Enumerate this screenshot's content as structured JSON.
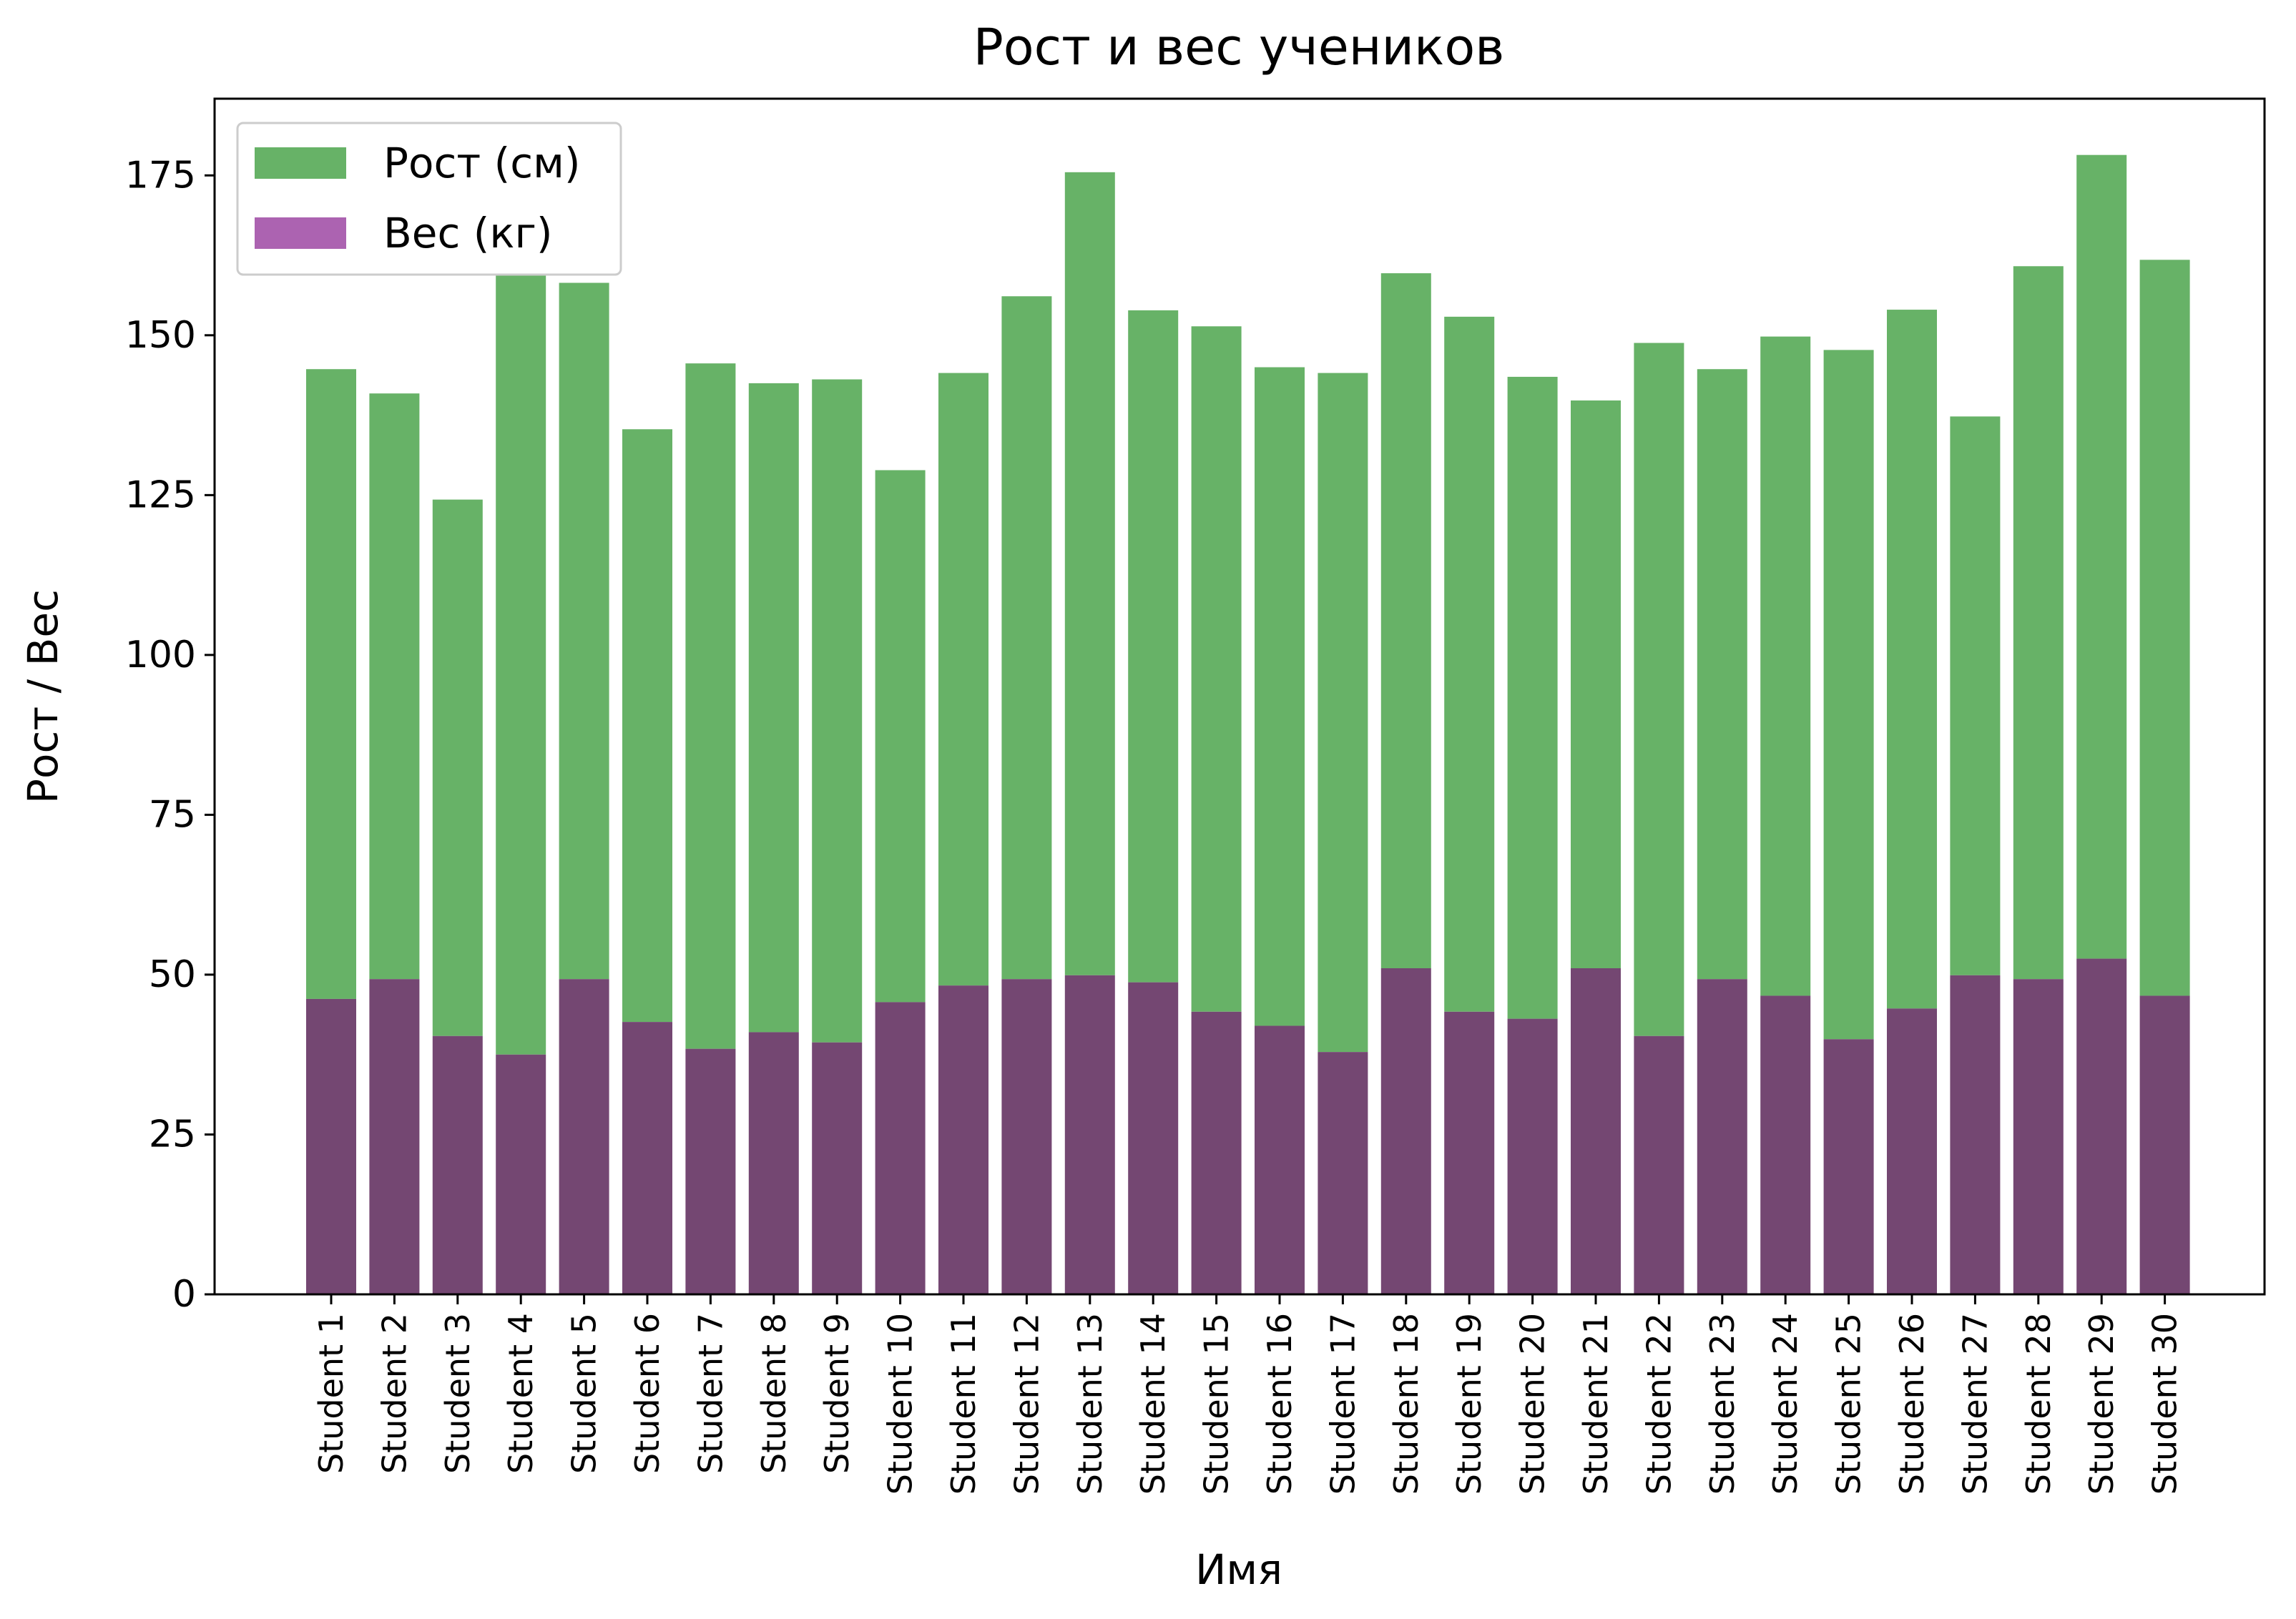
{
  "chart_data": {
    "type": "bar",
    "title": "Рост и вес учеников",
    "xlabel": "Имя",
    "ylabel": "Рост / Вес",
    "ylim": [
      0,
      187
    ],
    "yticks": [
      0,
      25,
      50,
      75,
      100,
      125,
      150,
      175
    ],
    "grid": false,
    "legend_position": "top-left",
    "categories": [
      "Student 1",
      "Student 2",
      "Student 3",
      "Student 4",
      "Student 5",
      "Student 6",
      "Student 7",
      "Student 8",
      "Student 9",
      "Student 10",
      "Student 11",
      "Student 12",
      "Student 13",
      "Student 14",
      "Student 15",
      "Student 16",
      "Student 17",
      "Student 18",
      "Student 19",
      "Student 20",
      "Student 21",
      "Student 22",
      "Student 23",
      "Student 24",
      "Student 25",
      "Student 26",
      "Student 27",
      "Student 28",
      "Student 29",
      "Student 30"
    ],
    "series": [
      {
        "name": "Рост (см)",
        "color": "#67b267",
        "values": [
          144.7,
          140.9,
          124.3,
          159.4,
          158.2,
          135.3,
          145.6,
          142.5,
          143.1,
          128.9,
          144.1,
          156.1,
          175.5,
          153.9,
          151.4,
          145.0,
          144.1,
          159.7,
          152.9,
          143.5,
          139.8,
          148.8,
          144.7,
          149.8,
          147.7,
          154.0,
          137.3,
          160.8,
          178.2,
          161.8
        ]
      },
      {
        "name": "Вес (кг)",
        "color": "#ac63b1",
        "overlap_color": "#744772",
        "values": [
          46.2,
          49.3,
          40.4,
          37.5,
          49.3,
          42.6,
          38.4,
          41.0,
          39.4,
          45.7,
          48.3,
          49.3,
          49.9,
          48.8,
          44.2,
          42.0,
          37.9,
          51.0,
          44.2,
          43.1,
          51.0,
          40.4,
          49.3,
          46.7,
          39.9,
          44.7,
          49.9,
          49.3,
          52.5,
          46.7
        ]
      }
    ]
  }
}
